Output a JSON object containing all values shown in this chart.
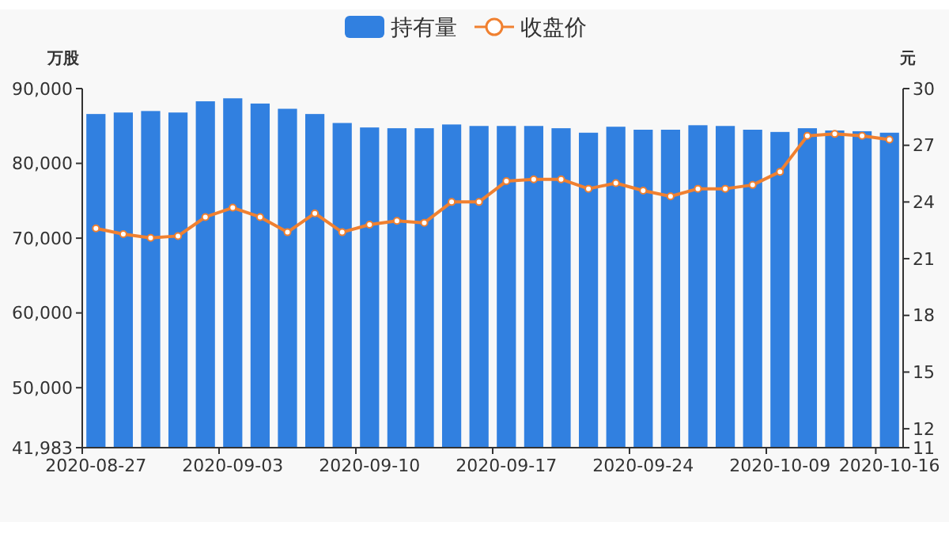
{
  "chart_data": {
    "type": "bar",
    "ylabel": "万股",
    "y2label": "元",
    "categories": [
      "2020-08-27",
      null,
      null,
      null,
      null,
      "2020-09-03",
      null,
      null,
      null,
      null,
      "2020-09-10",
      null,
      null,
      null,
      null,
      "2020-09-17",
      null,
      null,
      null,
      null,
      "2020-09-24",
      null,
      null,
      null,
      null,
      "2020-10-09",
      null,
      null,
      null,
      "2020-10-16"
    ],
    "series": [
      {
        "name": "持有量",
        "color": "#3180e0",
        "values": [
          86600,
          86800,
          87000,
          86800,
          88300,
          88700,
          88000,
          87300,
          86600,
          85400,
          84800,
          84700,
          84700,
          85200,
          85000,
          85000,
          85000,
          84700,
          84100,
          84900,
          84500,
          84500,
          85100,
          85000,
          84500,
          84200,
          84700,
          84400,
          84300,
          84100
        ]
      },
      {
        "name": "收盘价",
        "type": "line",
        "axis": "y2",
        "color": "#f08030",
        "marker": "circle",
        "values": [
          22.6,
          22.3,
          22.1,
          22.2,
          23.2,
          23.7,
          23.2,
          22.4,
          23.4,
          22.4,
          22.8,
          23.0,
          22.9,
          24.0,
          24.0,
          25.1,
          25.2,
          25.2,
          24.7,
          25.0,
          24.6,
          24.3,
          24.7,
          24.7,
          24.9,
          25.6,
          27.5,
          27.6,
          27.5,
          27.3
        ]
      }
    ],
    "ylim": [
      41983,
      90000
    ],
    "yticks": [
      {
        "value": 41983,
        "label": "41,983"
      },
      {
        "value": 50000,
        "label": "50,000"
      },
      {
        "value": 60000,
        "label": "60,000"
      },
      {
        "value": 70000,
        "label": "70,000"
      },
      {
        "value": 80000,
        "label": "80,000"
      },
      {
        "value": 90000,
        "label": "90,000"
      }
    ],
    "y2lim": [
      11,
      30
    ],
    "y2ticks": [
      11,
      12,
      15,
      18,
      21,
      24,
      27,
      30
    ],
    "legend": "top"
  }
}
